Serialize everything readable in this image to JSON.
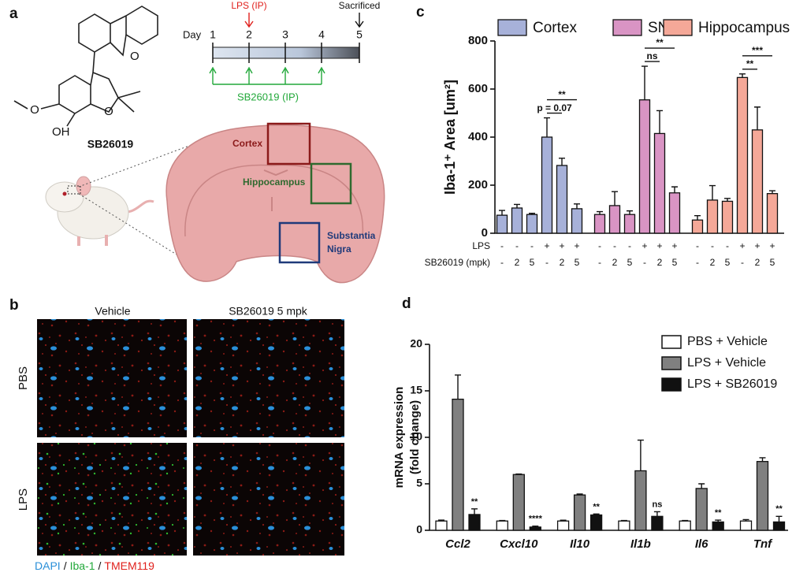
{
  "panel_labels": [
    "a",
    "b",
    "c",
    "d"
  ],
  "scheme": {
    "day_label": "Day",
    "days": [
      "1",
      "2",
      "3",
      "4",
      "5"
    ],
    "lps": "LPS (IP)",
    "sacrificed": "Sacrificed",
    "treatment": "SB26019 (IP)",
    "compound": "SB26019",
    "atoms": [
      "O",
      "O",
      "O",
      "OH"
    ],
    "regions": [
      "Cortex",
      "Hippocampus",
      "Substantia",
      "Nigra"
    ]
  },
  "images": {
    "columns": [
      "Vehicle",
      "SB26019 5 mpk"
    ],
    "rows": [
      "PBS",
      "LPS"
    ],
    "stains": [
      {
        "name": "DAPI",
        "color": "#2a8fd8"
      },
      {
        "name": "Iba-1",
        "color": "#22a83a"
      },
      {
        "name": "TMEM119",
        "color": "#e0201c"
      }
    ],
    "separator": "/"
  },
  "chart_data": [
    {
      "type": "bar",
      "ylabel": "Iba-1⁺ Area [um²]",
      "ylim": [
        0,
        800
      ],
      "yticks": [
        0,
        200,
        400,
        600,
        800
      ],
      "legend": "top",
      "row_labels": [
        "LPS",
        "SB26019 (mpk)"
      ],
      "rows": [
        [
          "-",
          "-",
          "-",
          "+",
          "+",
          "+"
        ],
        [
          "-",
          "2",
          "5",
          "-",
          "2",
          "5"
        ]
      ],
      "series": [
        {
          "name": "Cortex",
          "color": "#a7b1d9",
          "values": [
            75,
            105,
            78,
            400,
            282,
            102
          ],
          "errors": [
            20,
            15,
            5,
            80,
            30,
            20
          ],
          "annotations": [
            {
              "text": "p = 0.07",
              "bars": [
                3,
                4
              ]
            },
            {
              "text": "**",
              "bars": [
                3,
                5
              ]
            }
          ]
        },
        {
          "name": "SN",
          "color": "#d994c4",
          "values": [
            78,
            115,
            78,
            555,
            415,
            168
          ],
          "errors": [
            12,
            58,
            15,
            140,
            95,
            25
          ],
          "annotations": [
            {
              "text": "ns",
              "bars": [
                3,
                4
              ]
            },
            {
              "text": "**",
              "bars": [
                3,
                5
              ]
            }
          ]
        },
        {
          "name": "Hippocampus",
          "color": "#f5a898",
          "values": [
            55,
            138,
            133,
            648,
            430,
            165
          ],
          "errors": [
            18,
            60,
            12,
            15,
            95,
            12
          ],
          "annotations": [
            {
              "text": "**",
              "bars": [
                3,
                4
              ]
            },
            {
              "text": "***",
              "bars": [
                3,
                5
              ]
            }
          ]
        }
      ]
    },
    {
      "type": "bar",
      "ylabel": [
        "mRNA expression",
        "(fold change)"
      ],
      "ylim": [
        0,
        20
      ],
      "yticks": [
        0,
        5,
        10,
        15,
        20
      ],
      "legend": "top-right",
      "categories": [
        "Ccl2",
        "Cxcl10",
        "Il10",
        "Il1b",
        "Il6",
        "Tnf"
      ],
      "series": [
        {
          "name": "PBS + Vehicle",
          "color": "#ffffff",
          "values": [
            1,
            1,
            1,
            1,
            1,
            1
          ],
          "errors": [
            0.1,
            0.05,
            0.08,
            0.05,
            0.05,
            0.15
          ]
        },
        {
          "name": "LPS + Vehicle",
          "color": "#808080",
          "values": [
            14.1,
            6.0,
            3.8,
            6.4,
            4.5,
            7.4
          ],
          "errors": [
            2.6,
            0.05,
            0.1,
            3.3,
            0.5,
            0.4
          ]
        },
        {
          "name": "LPS + SB26019",
          "color": "#111111",
          "values": [
            1.7,
            0.35,
            1.65,
            1.5,
            0.9,
            0.9
          ],
          "errors": [
            0.6,
            0.1,
            0.1,
            0.5,
            0.2,
            0.6
          ],
          "annotations": [
            "**",
            "****",
            "**",
            "ns",
            "**",
            "**"
          ]
        }
      ]
    }
  ]
}
